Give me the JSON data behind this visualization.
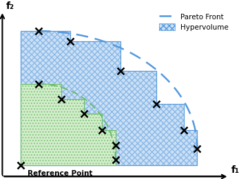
{
  "xlabel": "f₁",
  "ylabel": "f₂",
  "ref_point": [
    0.08,
    0.07
  ],
  "ref_point_label": "Reference Point",
  "blue_pareto_points": [
    [
      0.16,
      0.88
    ],
    [
      0.3,
      0.82
    ],
    [
      0.52,
      0.64
    ],
    [
      0.68,
      0.44
    ],
    [
      0.8,
      0.28
    ],
    [
      0.86,
      0.17
    ]
  ],
  "green_pareto_points": [
    [
      0.16,
      0.56
    ],
    [
      0.26,
      0.47
    ],
    [
      0.36,
      0.38
    ],
    [
      0.44,
      0.28
    ],
    [
      0.5,
      0.19
    ],
    [
      0.5,
      0.1
    ]
  ],
  "blue_curve_color": "#5599dd",
  "blue_hatch_color": "#5599dd",
  "blue_fill_color": "#cce0f5",
  "green_curve_color": "#66bb66",
  "green_hatch_color": "#66bb66",
  "green_fill_color": "#d4edcc",
  "xlim": [
    0.0,
    1.02
  ],
  "ylim": [
    0.0,
    1.02
  ],
  "legend_pareto_label": "Pareto Front",
  "legend_hv_label": "Hypervolume",
  "marker_size": 7,
  "marker_color": "black",
  "marker_linewidth": 1.8,
  "axis_color": "black",
  "axis_lw": 1.5
}
